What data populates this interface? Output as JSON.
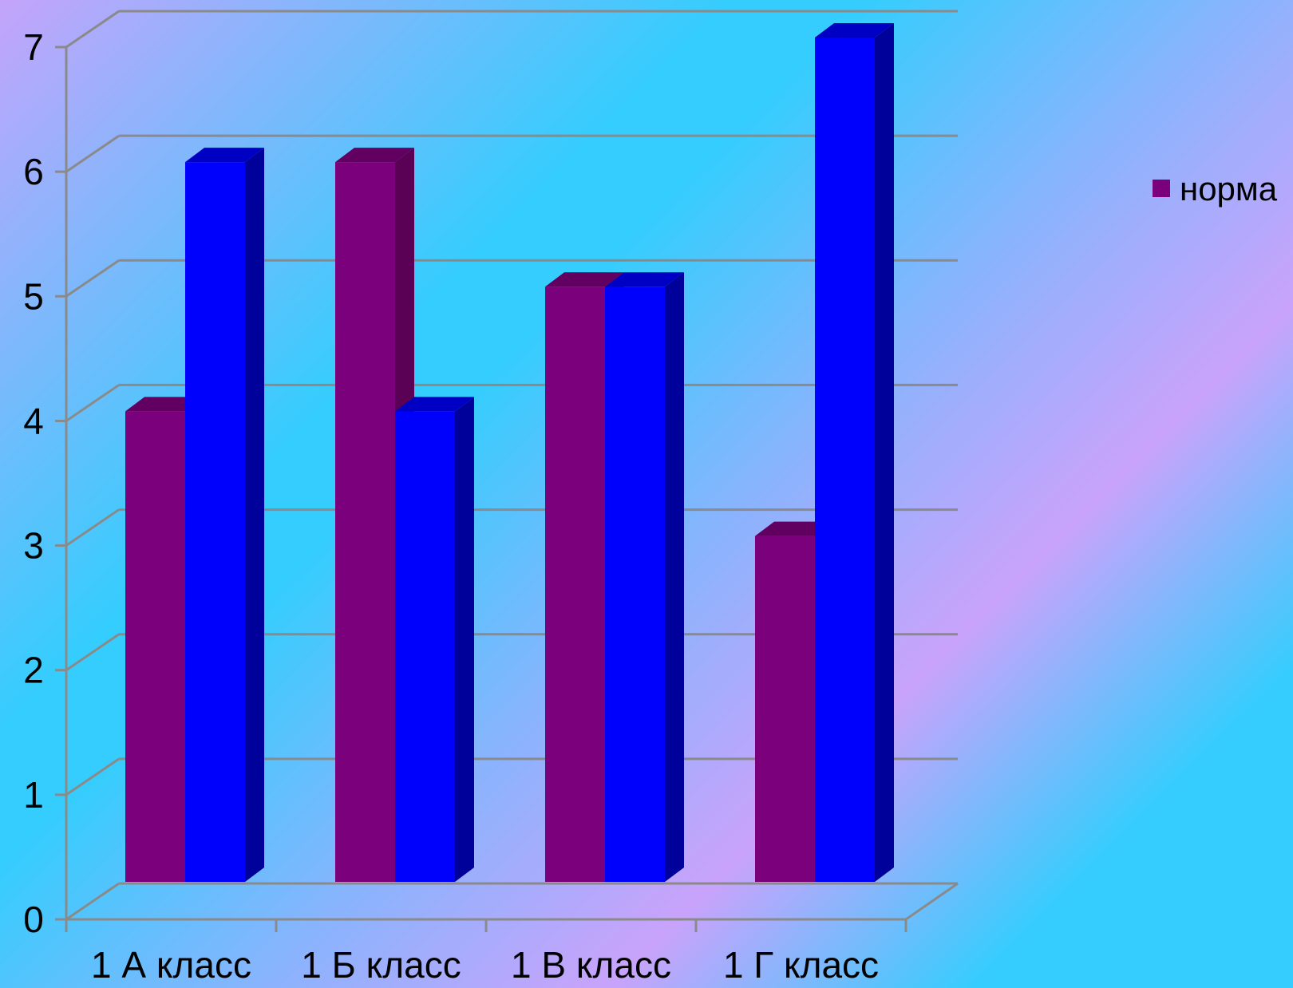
{
  "chart_data": {
    "type": "bar",
    "title": "",
    "xlabel": "",
    "ylabel": "",
    "categories": [
      "1 А класс",
      "1 Б класс",
      "1 В класс",
      "1 Г класс"
    ],
    "series": [
      {
        "name": "норма",
        "values": [
          4,
          6,
          5,
          3
        ],
        "color": "#7b007b",
        "side_color": "#5a0055",
        "top_color": "#620062"
      },
      {
        "values": [
          6,
          4,
          5,
          7
        ],
        "color": "#0000fd",
        "side_color": "#00009a",
        "top_color": "#0000c4"
      }
    ],
    "y_ticks": [
      "0",
      "1",
      "2",
      "3",
      "4",
      "5",
      "6",
      "7"
    ],
    "ylim": [
      0,
      7
    ],
    "grid": true,
    "legend_position": "right",
    "style": "3d-clustered-column",
    "grid_color": "#8a8a8a"
  }
}
